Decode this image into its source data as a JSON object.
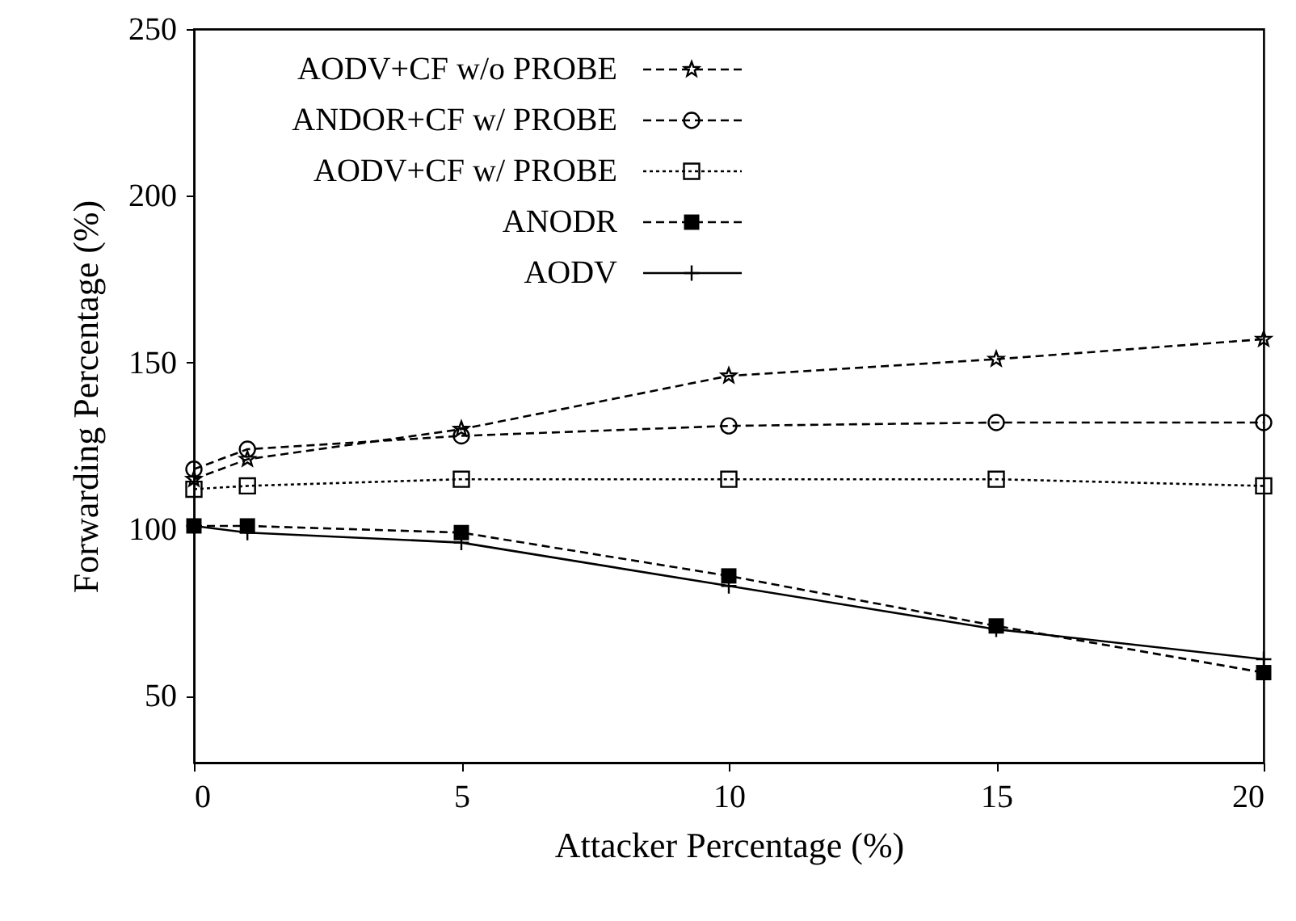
{
  "chart_data": {
    "type": "line",
    "xlabel": "Attacker Percentage (%)",
    "ylabel": "Forwarding Percentage (%)",
    "x": [
      0,
      1,
      5,
      10,
      15,
      20
    ],
    "xlim": [
      0,
      20
    ],
    "xticks": [
      0,
      5,
      10,
      15,
      20
    ],
    "ylim": [
      30,
      250
    ],
    "yticks": [
      50,
      100,
      150,
      200,
      250
    ],
    "grid": false,
    "legend": "top left",
    "series": [
      {
        "name": "AODV+CF w/o PROBE",
        "color": "#000000",
        "line_style": "dashed",
        "marker": "star",
        "values": [
          115,
          121,
          130,
          146,
          151,
          157
        ]
      },
      {
        "name": "ANDOR+CF w/ PROBE",
        "color": "#000000",
        "line_style": "dashed",
        "marker": "circle",
        "values": [
          118,
          124,
          128,
          131,
          132,
          132
        ]
      },
      {
        "name": "AODV+CF w/ PROBE",
        "color": "#000000",
        "line_style": "dotted",
        "marker": "square",
        "values": [
          112,
          113,
          115,
          115,
          115,
          113
        ]
      },
      {
        "name": "ANODR",
        "color": "#000000",
        "line_style": "dashed",
        "marker": "square",
        "values": [
          101,
          101,
          99,
          86,
          71,
          57
        ]
      },
      {
        "name": "AODV",
        "color": "#000000",
        "line_style": "solid",
        "marker": "cross",
        "values": [
          101,
          99,
          96,
          83,
          70,
          61
        ]
      }
    ]
  }
}
